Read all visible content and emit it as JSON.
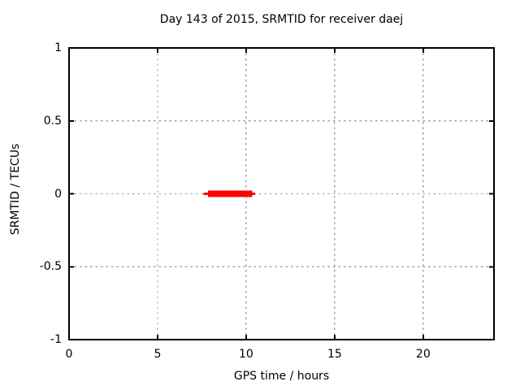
{
  "chart_data": {
    "type": "line",
    "title": "Day 143 of 2015, SRMTID for receiver daej",
    "xlabel": "GPS time / hours",
    "ylabel": "SRMTID / TECUs",
    "xlim": [
      0,
      24
    ],
    "ylim": [
      -1,
      1
    ],
    "xticks": [
      0,
      5,
      10,
      15,
      20
    ],
    "xtick_labels": [
      "0",
      "5",
      "10",
      "15",
      "20"
    ],
    "yticks": [
      -1,
      -0.5,
      0,
      0.5,
      1
    ],
    "ytick_labels": [
      "-1",
      "-0.5",
      "0",
      "0.5",
      "1"
    ],
    "grid": true,
    "legend_position": "none",
    "colors": {
      "background": "#ffffff",
      "border": "#000000",
      "grid": "#a0a0a0",
      "text": "#000000",
      "series": "#ff0000"
    },
    "series": [
      {
        "name": "SRMTID thin line",
        "color": "#ff0000",
        "stroke_width": 3,
        "x": [
          7.6,
          10.5
        ],
        "y": [
          0,
          0
        ]
      },
      {
        "name": "SRMTID thick segment",
        "color": "#ff0000",
        "stroke_width": 8,
        "x": [
          7.85,
          10.35
        ],
        "y": [
          0,
          0
        ]
      }
    ]
  }
}
